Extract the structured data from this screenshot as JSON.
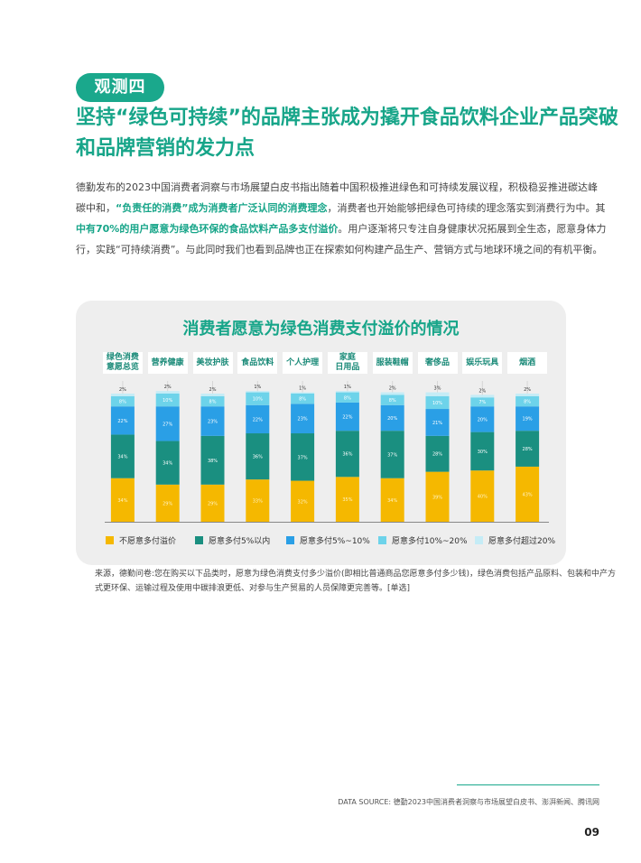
{
  "badge": "观测四",
  "headline": {
    "line1": "坚持“绿色可持续”的品牌主张成为撬开食品饮料企业产品突破",
    "line2": "和品牌营销的发力点"
  },
  "paragraph": {
    "line1": "德勤发布的2023中国消费者洞察与市场展望白皮书指出随着中国积极推进绿色和可持续发展议程，积极稳妥推进碳达峰",
    "line2_a": "碳中和，",
    "line2_hl": "“负责任的消费”成为消费者广泛认同的消费理念",
    "line2_b": "，消费者也开始能够把绿色可持续的理念落实到消费行为中。其",
    "line3_hl": "中有70%的用户愿意为绿色环保的食品饮料产品多支付溢价",
    "line3_b": "。用户逐渐将只专注自身健康状况拓展到全生态，愿意身体力",
    "line4": "行，实践“可持续消费”。与此同时我们也看到品牌也正在探索如何构建产品生产、营销方式与地球环境之间的有机平衡。"
  },
  "colors": {
    "accent": "#17a589",
    "series": [
      "#f5b800",
      "#1a8f80",
      "#2a9fe6",
      "#6dd3ea",
      "#c5ecf6"
    ]
  },
  "chart_data": {
    "type": "bar",
    "stacked": true,
    "title": "消费者愿意为绿色消费支付溢价的情况",
    "categories": [
      "绿色消费意愿总览",
      "营养健康",
      "美妆护肤",
      "食品饮料",
      "个人护理",
      "家庭日用品",
      "服装鞋帽",
      "奢侈品",
      "娱乐玩具",
      "烟酒"
    ],
    "category_lines": [
      [
        "绿色消费",
        "意愿总览"
      ],
      [
        "营养健康"
      ],
      [
        "美妆护肤"
      ],
      [
        "食品饮料"
      ],
      [
        "个人护理"
      ],
      [
        "家庭",
        "日用品"
      ],
      [
        "服装鞋帽"
      ],
      [
        "奢侈品"
      ],
      [
        "娱乐玩具"
      ],
      [
        "烟酒"
      ]
    ],
    "series": [
      {
        "name": "不愿意多付溢价",
        "values": [
          34,
          29,
          29,
          33,
          32,
          35,
          34,
          39,
          40,
          43
        ]
      },
      {
        "name": "愿意多付5%以内",
        "values": [
          34,
          34,
          38,
          36,
          37,
          36,
          37,
          28,
          30,
          28
        ]
      },
      {
        "name": "愿意多付5%~10%",
        "values": [
          22,
          27,
          23,
          22,
          23,
          22,
          20,
          21,
          20,
          19
        ]
      },
      {
        "name": "愿意多付10%~20%",
        "values": [
          8,
          10,
          8,
          10,
          8,
          8,
          8,
          10,
          7,
          8
        ]
      },
      {
        "name": "愿意多付超过20%",
        "values": [
          2,
          2,
          2,
          1,
          1,
          1,
          2,
          3,
          2,
          2
        ]
      }
    ],
    "ylim": [
      0,
      100
    ]
  },
  "footnote": {
    "line1": "来源，德勤问卷:您在购买以下品类时，愿意为绿色消费支付多少溢价(即相比普通商品您愿意多付多少钱)，绿色消费包括产品原料、包装和中产方",
    "line2": "式更环保、运输过程及使用中碳排浪更低、对参与生产贸易的人员保障更完善等。[单选]"
  },
  "source": "DATA SOURCE: 德勤2023中国消费者洞察与市场展望白皮书、澎湃新闻、腾讯网",
  "page_number": "09"
}
